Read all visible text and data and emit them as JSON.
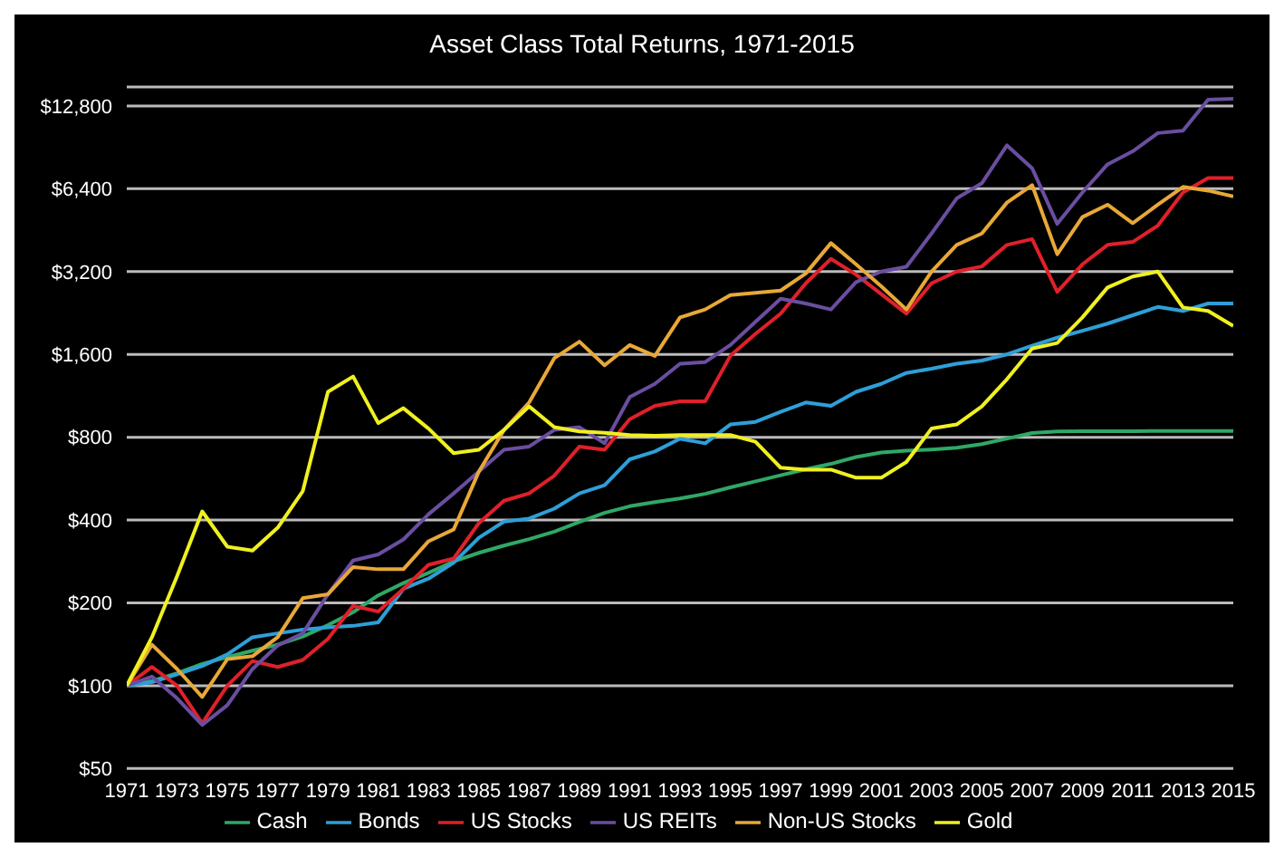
{
  "chart_data": {
    "type": "line",
    "title": "Asset Class Total Returns, 1971-2015",
    "x": [
      1971,
      1972,
      1973,
      1974,
      1975,
      1976,
      1977,
      1978,
      1979,
      1980,
      1981,
      1982,
      1983,
      1984,
      1985,
      1986,
      1987,
      1988,
      1989,
      1990,
      1991,
      1992,
      1993,
      1994,
      1995,
      1996,
      1997,
      1998,
      1999,
      2000,
      2001,
      2002,
      2003,
      2004,
      2005,
      2006,
      2007,
      2008,
      2009,
      2010,
      2011,
      2012,
      2013,
      2014,
      2015
    ],
    "series": [
      {
        "name": "Cash",
        "color": "#2fa866",
        "values": [
          100,
          104,
          111,
          120,
          127,
          134,
          141,
          151,
          166,
          185,
          213,
          236,
          257,
          283,
          304,
          323,
          341,
          363,
          394,
          425,
          449,
          465,
          479,
          498,
          526,
          553,
          582,
          612,
          640,
          678,
          704,
          715,
          722,
          732,
          755,
          791,
          829,
          840,
          841,
          842,
          842,
          843,
          843,
          843,
          843
        ]
      },
      {
        "name": "Bonds",
        "color": "#2e9fd8",
        "values": [
          100,
          103,
          110,
          118,
          130,
          150,
          155,
          160,
          163,
          165,
          170,
          225,
          245,
          280,
          345,
          395,
          405,
          440,
          500,
          535,
          665,
          710,
          790,
          760,
          890,
          910,
          990,
          1070,
          1040,
          1170,
          1250,
          1370,
          1420,
          1480,
          1520,
          1600,
          1720,
          1840,
          1950,
          2070,
          2220,
          2380,
          2300,
          2450,
          2450
        ]
      },
      {
        "name": "US Stocks",
        "color": "#e0202a",
        "values": [
          100,
          117,
          100,
          73,
          100,
          123,
          117,
          124,
          148,
          195,
          186,
          225,
          275,
          290,
          390,
          470,
          500,
          580,
          740,
          720,
          930,
          1040,
          1080,
          1080,
          1580,
          1900,
          2250,
          2900,
          3560,
          3120,
          2650,
          2250,
          2900,
          3200,
          3340,
          4000,
          4200,
          2700,
          3400,
          4000,
          4100,
          4700,
          6200,
          7000,
          7000
        ]
      },
      {
        "name": "US REITs",
        "color": "#6a4ea0",
        "values": [
          100,
          108,
          90,
          72,
          85,
          115,
          140,
          155,
          215,
          285,
          300,
          340,
          420,
          500,
          600,
          720,
          740,
          850,
          870,
          760,
          1120,
          1250,
          1480,
          1500,
          1730,
          2100,
          2550,
          2450,
          2330,
          2930,
          3200,
          3330,
          4400,
          5900,
          6700,
          9200,
          7600,
          4770,
          6200,
          7850,
          8750,
          10200,
          10400,
          13500,
          13600
        ]
      },
      {
        "name": "Non-US Stocks",
        "color": "#e8a838",
        "values": [
          100,
          141,
          115,
          91,
          125,
          128,
          150,
          208,
          215,
          270,
          265,
          265,
          335,
          370,
          600,
          850,
          1070,
          1550,
          1780,
          1460,
          1730,
          1580,
          2180,
          2330,
          2630,
          2680,
          2730,
          3150,
          4060,
          3400,
          2830,
          2330,
          3200,
          4000,
          4400,
          5700,
          6600,
          3700,
          5050,
          5600,
          4800,
          5600,
          6500,
          6300,
          6000
        ]
      },
      {
        "name": "Gold",
        "color": "#f0f020",
        "values": [
          100,
          150,
          250,
          430,
          320,
          310,
          375,
          510,
          1170,
          1330,
          900,
          1020,
          860,
          700,
          720,
          850,
          1035,
          870,
          840,
          830,
          815,
          810,
          815,
          815,
          815,
          770,
          620,
          610,
          610,
          570,
          570,
          650,
          860,
          890,
          1035,
          1300,
          1680,
          1760,
          2180,
          2800,
          3070,
          3200,
          2370,
          2300,
          2030
        ]
      }
    ],
    "log": true,
    "ylim": [
      50,
      15000
    ],
    "yticks": [
      {
        "value": 50,
        "label": "$50"
      },
      {
        "value": 100,
        "label": "$100"
      },
      {
        "value": 200,
        "label": "$200"
      },
      {
        "value": 400,
        "label": "$400"
      },
      {
        "value": 800,
        "label": "$800"
      },
      {
        "value": 1600,
        "label": "$1,600"
      },
      {
        "value": 3200,
        "label": "$3,200"
      },
      {
        "value": 6400,
        "label": "$6,400"
      },
      {
        "value": 12800,
        "label": "$12,800"
      }
    ],
    "xlim": [
      1971,
      2015
    ],
    "xticks": [
      1971,
      1973,
      1975,
      1977,
      1979,
      1981,
      1983,
      1985,
      1987,
      1989,
      1991,
      1993,
      1995,
      1997,
      1999,
      2001,
      2003,
      2005,
      2007,
      2009,
      2011,
      2013,
      2015
    ],
    "grid": "y",
    "legend": "bottom",
    "marker": "none",
    "line_style": "solid"
  }
}
